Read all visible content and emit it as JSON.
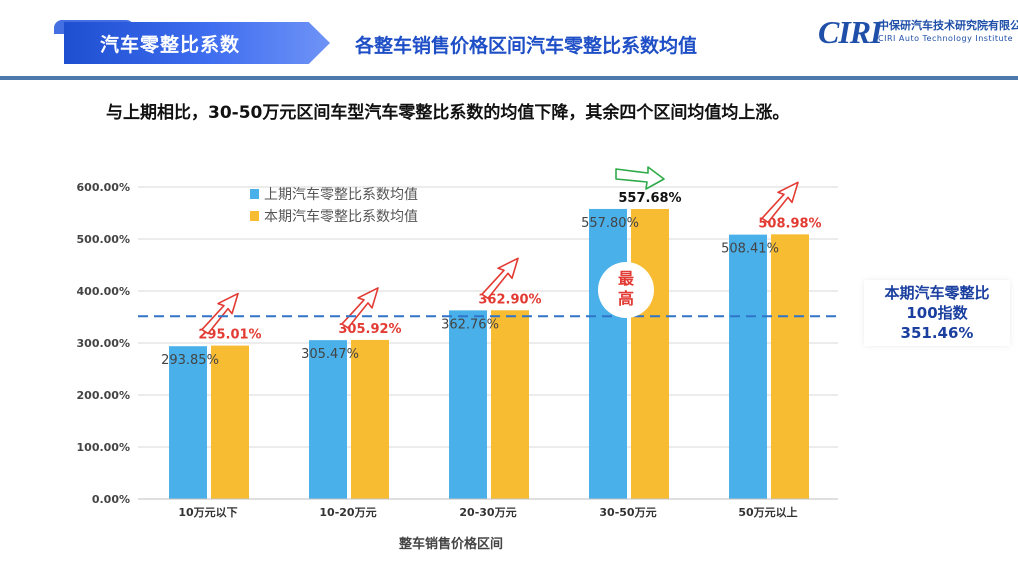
{
  "header": {
    "section_label": "汽车零整比系数",
    "page_title": "各整车销售价格区间汽车零整比系数均值",
    "logo_mark": "CIRI",
    "logo_cn": "中保研汽车技术研究院有限公司",
    "logo_en": "CIRI Auto Technology Institute"
  },
  "subtitle": "与上期相比，30-50万元区间车型汽车零整比系数的均值下降，其余四个区间均值均上涨。",
  "index_box": {
    "line1": "本期汽车零整比",
    "line2": "100指数",
    "line3": "351.46%"
  },
  "badge": {
    "line1": "最",
    "line2": "高"
  },
  "colors": {
    "prev": "#4ab0ea",
    "cur": "#f8bc33",
    "accent": "#1f4fc6",
    "rise": "#e23b33",
    "fall": "#2eaa4a"
  },
  "chart_data": {
    "type": "bar",
    "categories": [
      "10万元以下",
      "10-20万元",
      "20-30万元",
      "30-50万元",
      "50万元以上"
    ],
    "series": [
      {
        "name": "上期汽车零整比系数均值",
        "values": [
          293.85,
          305.47,
          362.76,
          557.8,
          508.41
        ],
        "labels": [
          "293.85%",
          "305.47%",
          "362.76%",
          "557.80%",
          "508.41%"
        ]
      },
      {
        "name": "本期汽车零整比系数均值",
        "values": [
          295.01,
          305.92,
          362.9,
          557.68,
          508.98
        ],
        "labels": [
          "295.01%",
          "305.92%",
          "362.90%",
          "557.68%",
          "508.98%"
        ]
      }
    ],
    "trend": [
      "up",
      "up",
      "up",
      "down",
      "up"
    ],
    "reference_line": {
      "value": 351.46
    },
    "ylim": [
      0,
      600
    ],
    "yticks": [
      0,
      100,
      200,
      300,
      400,
      500,
      600
    ],
    "ytick_labels": [
      "0.00%",
      "100.00%",
      "200.00%",
      "300.00%",
      "400.00%",
      "500.00%",
      "600.00%"
    ],
    "xlabel": "整车销售价格区间",
    "ylabel": "",
    "legend_position": "top-left",
    "grid": true
  }
}
